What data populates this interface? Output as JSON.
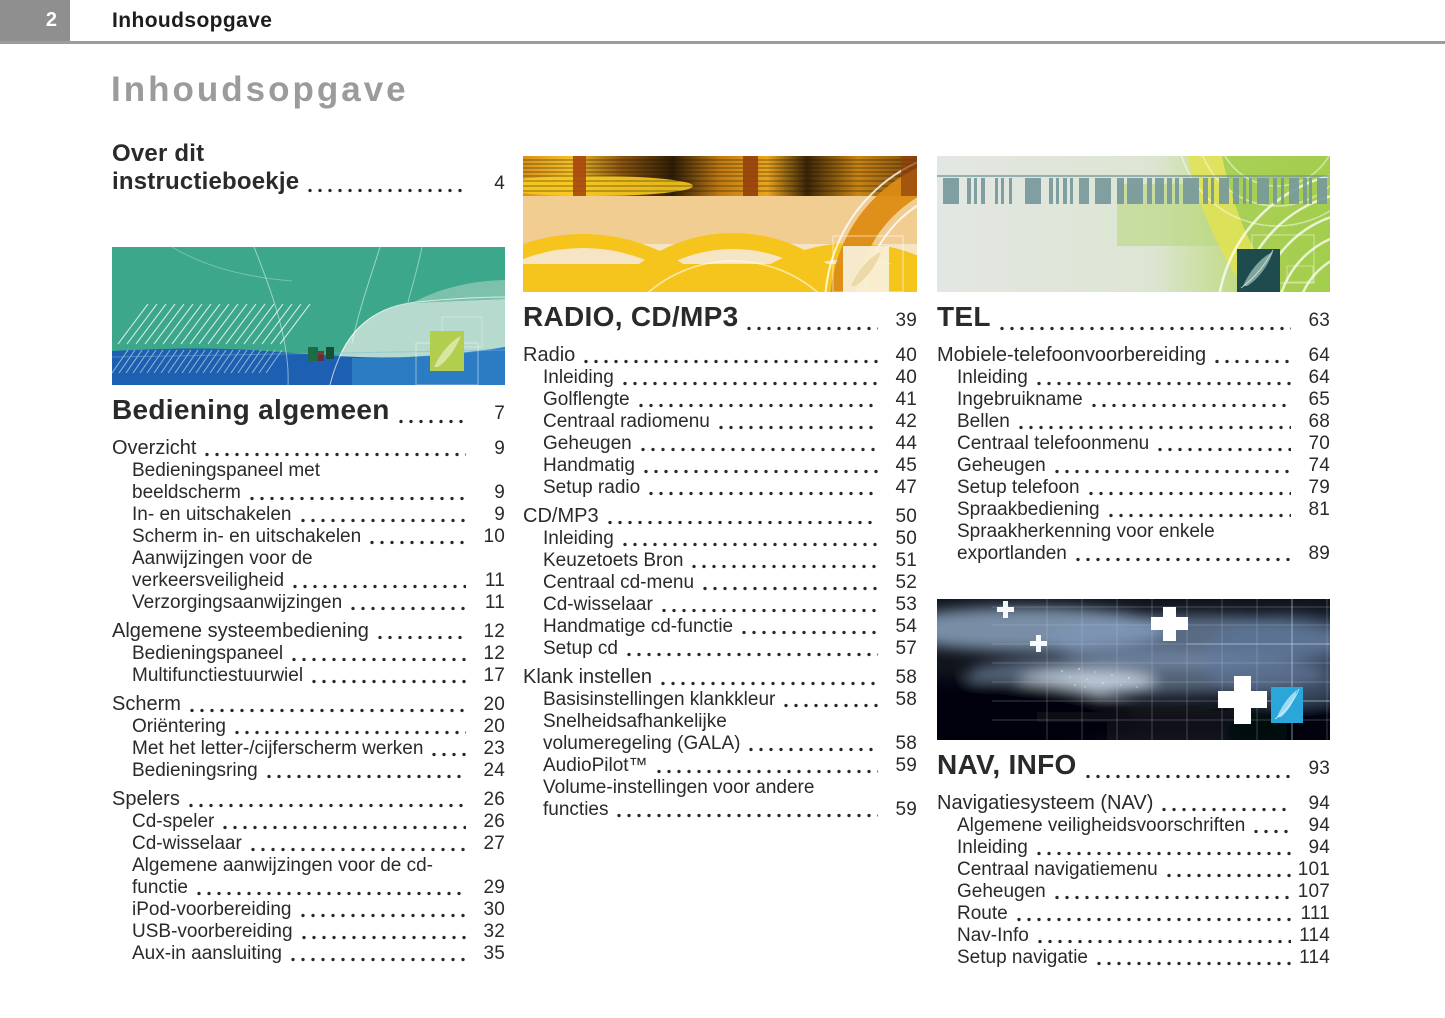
{
  "page": {
    "number": "2",
    "header": "Inhoudsopgave",
    "title": "Inhoudsopgave"
  },
  "colors": {
    "accent_teal": "#3CA78B",
    "accent_orange": "#F6C51D",
    "accent_green": "#A5CE4E",
    "accent_dark_blue": "#10141C",
    "title_gray": "#9B9B9B",
    "topbar_gray": "#8F8F8F"
  },
  "banners": {
    "general": "abstract-teal-blue-graphic",
    "radio": "orange-yellow-swirl-graphic",
    "tel": "green-barcode-graphic",
    "nav": "dark-blue-crosses-graphic"
  },
  "toc": {
    "col1_about": [
      {
        "style": "chapter-sm",
        "label": "Over dit\ninstructieboekje",
        "page": "4"
      }
    ],
    "col1": [
      {
        "style": "chapter",
        "label": "Bediening algemeen",
        "page": "7"
      },
      {
        "style": "section",
        "label": "Overzicht",
        "page": "9"
      },
      {
        "style": "sub",
        "label": "Bedieningspaneel met\nbeeldscherm",
        "page": "9"
      },
      {
        "style": "sub",
        "label": "In- en uitschakelen",
        "page": "9"
      },
      {
        "style": "sub",
        "label": "Scherm in- en uitschakelen",
        "page": "10"
      },
      {
        "style": "sub",
        "label": "Aanwijzingen voor de\nverkeersveiligheid",
        "page": "11"
      },
      {
        "style": "sub",
        "label": "Verzorgingsaanwijzingen",
        "page": "11"
      },
      {
        "style": "section",
        "label": "Algemene systeembediening",
        "page": "12"
      },
      {
        "style": "sub",
        "label": "Bedieningspaneel",
        "page": "12"
      },
      {
        "style": "sub",
        "label": "Multifunctiestuurwiel",
        "page": "17"
      },
      {
        "style": "section",
        "label": "Scherm",
        "page": "20"
      },
      {
        "style": "sub",
        "label": "Oriëntering",
        "page": "20"
      },
      {
        "style": "sub",
        "label": "Met het letter-/cijferscherm werken",
        "page": "23"
      },
      {
        "style": "sub",
        "label": "Bedieningsring",
        "page": "24"
      },
      {
        "style": "section",
        "label": "Spelers",
        "page": "26"
      },
      {
        "style": "sub",
        "label": "Cd-speler",
        "page": "26"
      },
      {
        "style": "sub",
        "label": "Cd-wisselaar",
        "page": "27"
      },
      {
        "style": "sub",
        "label": "Algemene aanwijzingen voor de cd-\nfunctie",
        "page": "29"
      },
      {
        "style": "sub",
        "label": "iPod-voorbereiding",
        "page": "30"
      },
      {
        "style": "sub",
        "label": "USB-voorbereiding",
        "page": "32"
      },
      {
        "style": "sub",
        "label": "Aux-in aansluiting",
        "page": "35"
      }
    ],
    "col2": [
      {
        "style": "chapter",
        "label": "RADIO, CD/MP3",
        "page": "39"
      },
      {
        "style": "section",
        "label": "Radio",
        "page": "40"
      },
      {
        "style": "sub",
        "label": "Inleiding",
        "page": "40"
      },
      {
        "style": "sub",
        "label": "Golflengte",
        "page": "41"
      },
      {
        "style": "sub",
        "label": "Centraal radiomenu",
        "page": "42"
      },
      {
        "style": "sub",
        "label": "Geheugen",
        "page": "44"
      },
      {
        "style": "sub",
        "label": "Handmatig",
        "page": "45"
      },
      {
        "style": "sub",
        "label": "Setup radio",
        "page": "47"
      },
      {
        "style": "section",
        "label": "CD/MP3",
        "page": "50"
      },
      {
        "style": "sub",
        "label": "Inleiding",
        "page": "50"
      },
      {
        "style": "sub",
        "label": "Keuzetoets Bron",
        "page": "51"
      },
      {
        "style": "sub",
        "label": "Centraal cd-menu",
        "page": "52"
      },
      {
        "style": "sub",
        "label": "Cd-wisselaar",
        "page": "53"
      },
      {
        "style": "sub",
        "label": "Handmatige cd-functie",
        "page": "54"
      },
      {
        "style": "sub",
        "label": "Setup cd",
        "page": "57"
      },
      {
        "style": "section",
        "label": "Klank instellen",
        "page": "58"
      },
      {
        "style": "sub",
        "label": "Basisinstellingen klankkleur",
        "page": "58"
      },
      {
        "style": "sub",
        "label": "Snelheidsafhankelijke\nvolumeregeling (GALA)",
        "page": "58"
      },
      {
        "style": "sub",
        "label": "AudioPilot™",
        "page": "59"
      },
      {
        "style": "sub",
        "label": "Volume-instellingen voor andere\nfuncties",
        "page": "59"
      }
    ],
    "col3_tel": [
      {
        "style": "chapter",
        "label": "TEL",
        "page": "63"
      },
      {
        "style": "section",
        "label": "Mobiele-telefoonvoorbereiding",
        "page": "64"
      },
      {
        "style": "sub",
        "label": "Inleiding",
        "page": "64"
      },
      {
        "style": "sub",
        "label": "Ingebruikname",
        "page": "65"
      },
      {
        "style": "sub",
        "label": "Bellen",
        "page": "68"
      },
      {
        "style": "sub",
        "label": "Centraal telefoonmenu",
        "page": "70"
      },
      {
        "style": "sub",
        "label": "Geheugen",
        "page": "74"
      },
      {
        "style": "sub",
        "label": "Setup telefoon",
        "page": "79"
      },
      {
        "style": "sub",
        "label": "Spraakbediening",
        "page": "81"
      },
      {
        "style": "sub",
        "label": "Spraakherkenning voor enkele\nexportlanden",
        "page": "89"
      }
    ],
    "col3_nav": [
      {
        "style": "chapter",
        "label": "NAV, INFO",
        "page": "93"
      },
      {
        "style": "section",
        "label": "Navigatiesysteem (NAV)",
        "page": "94"
      },
      {
        "style": "sub",
        "label": "Algemene veiligheidsvoorschriften",
        "page": "94"
      },
      {
        "style": "sub",
        "label": "Inleiding",
        "page": "94"
      },
      {
        "style": "sub",
        "label": "Centraal navigatiemenu",
        "page": "101"
      },
      {
        "style": "sub",
        "label": "Geheugen",
        "page": "107"
      },
      {
        "style": "sub",
        "label": "Route",
        "page": "111"
      },
      {
        "style": "sub",
        "label": "Nav-Info",
        "page": "114"
      },
      {
        "style": "sub",
        "label": "Setup navigatie",
        "page": "114"
      }
    ]
  }
}
